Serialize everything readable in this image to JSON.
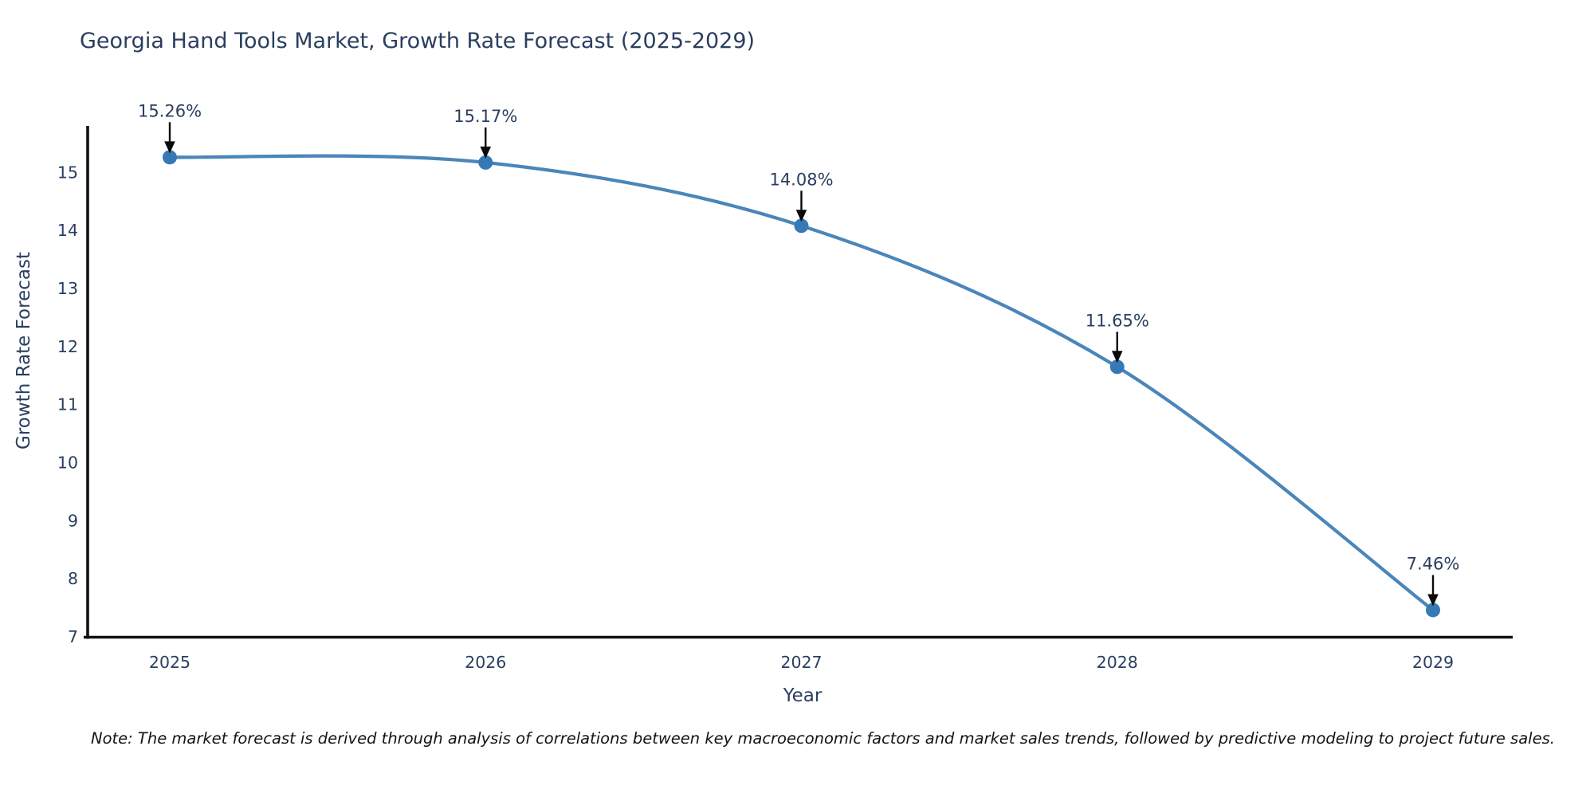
{
  "chart_data": {
    "type": "line",
    "title": "Georgia Hand Tools Market, Growth Rate Forecast (2025-2029)",
    "xlabel": "Year",
    "ylabel": "Growth Rate Forecast",
    "x": [
      2025,
      2026,
      2027,
      2028,
      2029
    ],
    "values": [
      15.26,
      15.17,
      14.08,
      11.65,
      7.46
    ],
    "point_labels": [
      "15.26%",
      "15.17%",
      "14.08%",
      "11.65%",
      "7.46%"
    ],
    "yticks": [
      7,
      8,
      9,
      10,
      11,
      12,
      13,
      14,
      15
    ],
    "ylim": [
      7,
      15.8
    ],
    "grid": false,
    "legend": "none",
    "line_color": "#4a86ba",
    "marker_color": "#3779b5",
    "arrow_color": "#0a0a0a",
    "text_color": "#2a3f5f",
    "axis_color": "#111111",
    "note": "Note: The market forecast is derived through analysis of correlations between key macroeconomic factors and market sales trends, followed by predictive modeling to project future sales."
  }
}
